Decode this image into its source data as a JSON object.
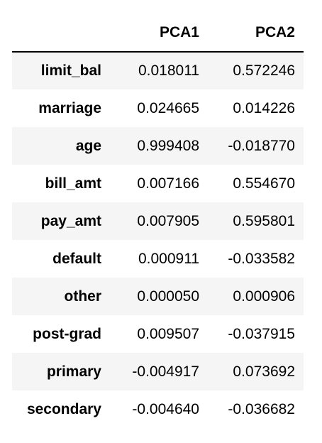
{
  "table": {
    "columns": {
      "index": "",
      "pca1": "PCA1",
      "pca2": "PCA2"
    },
    "rows": [
      {
        "label": "limit_bal",
        "pca1": "0.018011",
        "pca2": "0.572246"
      },
      {
        "label": "marriage",
        "pca1": "0.024665",
        "pca2": "0.014226"
      },
      {
        "label": "age",
        "pca1": "0.999408",
        "pca2": "-0.018770"
      },
      {
        "label": "bill_amt",
        "pca1": "0.007166",
        "pca2": "0.554670"
      },
      {
        "label": "pay_amt",
        "pca1": "0.007905",
        "pca2": "0.595801"
      },
      {
        "label": "default",
        "pca1": "0.000911",
        "pca2": "-0.033582"
      },
      {
        "label": "other",
        "pca1": "0.000050",
        "pca2": "0.000906"
      },
      {
        "label": "post-grad",
        "pca1": "0.009507",
        "pca2": "-0.037915"
      },
      {
        "label": "primary",
        "pca1": "-0.004917",
        "pca2": "0.073692"
      },
      {
        "label": "secondary",
        "pca1": "-0.004640",
        "pca2": "-0.036682"
      }
    ]
  },
  "colors": {
    "stripe": "#f5f5f5",
    "background": "#ffffff",
    "header_rule": "#000000",
    "text": "#000000"
  }
}
